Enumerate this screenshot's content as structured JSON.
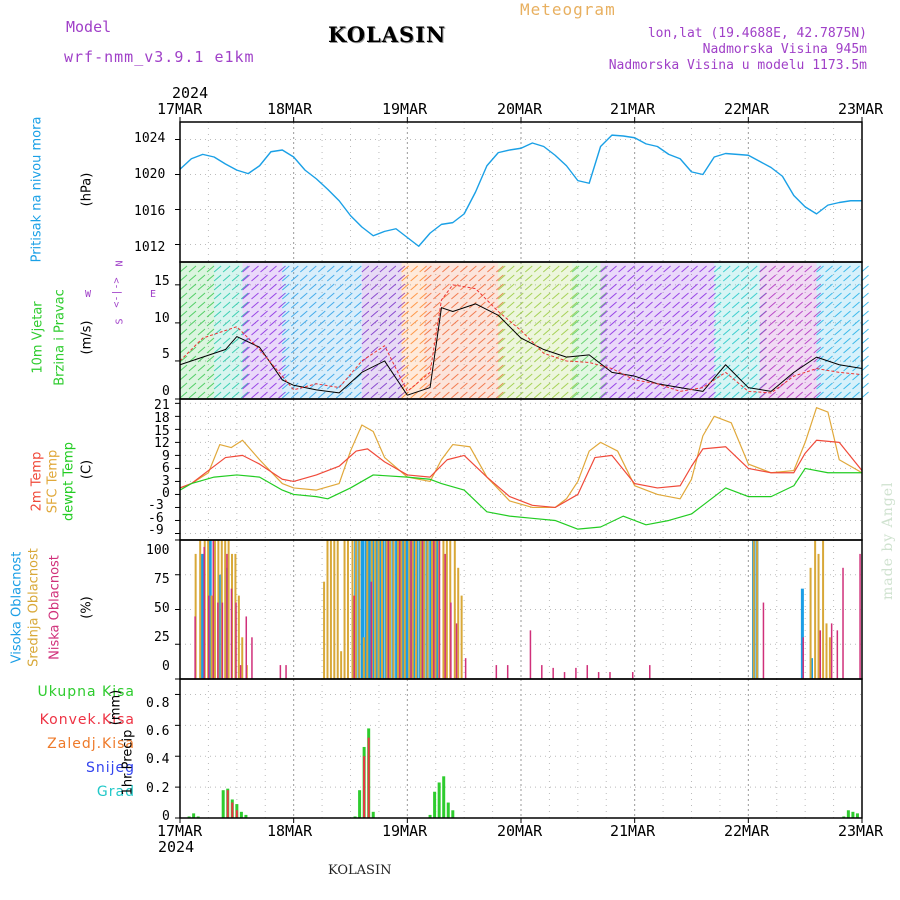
{
  "header": {
    "model_label": "Model",
    "model_name": "wrf-nmm_v3.9.1 e1km",
    "station": "KOLASIN",
    "meteogram": "Meteogram",
    "lonlat": "lon,lat (19.4688E, 42.7875N)",
    "elevation": "Nadmorska Visina 945m",
    "model_elevation": "Nadmorska Visina u modelu 1173.5m",
    "credit": "made by Angel",
    "footer_station": "KOLASIN"
  },
  "colors": {
    "pressure": "#1aa0e6",
    "temp2m": "#f04a3a",
    "sfc_temp": "#e0a83a",
    "dewpt": "#22cc22",
    "high_cloud": "#1a9ee6",
    "mid_cloud": "#d8a838",
    "low_cloud": "#d0307a",
    "total_precip": "#2ecc2e",
    "conv_precip": "#ee3344",
    "frz_precip": "#ee7a2a",
    "snow": "#3344ee",
    "hail": "#22c8c8",
    "wind_speed": "#000000",
    "wind_gust": "#ee3333",
    "title_purple": "#a040c8",
    "meteo_orange": "#e8b060"
  },
  "chart_data": {
    "type": "meteogram",
    "x_axis": {
      "year": "2024",
      "ticks": [
        "17MAR",
        "18MAR",
        "19MAR",
        "20MAR",
        "21MAR",
        "22MAR",
        "23MAR"
      ],
      "range_days": [
        0,
        6
      ]
    },
    "panels": [
      {
        "id": "pressure",
        "type": "line",
        "ylabel": "Pritisak na nivou mora",
        "unit": "(hPa)",
        "yticks": [
          "1012",
          "1016",
          "1020",
          "1024"
        ],
        "ylim": [
          1010,
          1026
        ],
        "series": [
          {
            "x": [
              0,
              0.1,
              0.2,
              0.3,
              0.4,
              0.5,
              0.6,
              0.7,
              0.8,
              0.9,
              1.0,
              1.1,
              1.2,
              1.3,
              1.4,
              1.5,
              1.6,
              1.7,
              1.8,
              1.9,
              2.0,
              2.1,
              2.2,
              2.3,
              2.4,
              2.5,
              2.6,
              2.7,
              2.8,
              2.9,
              3.0,
              3.1,
              3.2,
              3.3,
              3.4,
              3.5,
              3.6,
              3.7,
              3.8,
              3.9,
              4.0,
              4.1,
              4.2,
              4.3,
              4.4,
              4.5,
              4.6,
              4.7,
              4.8,
              4.9,
              5.0,
              5.1,
              5.2,
              5.3,
              5.4,
              5.5,
              5.6,
              5.7,
              5.8,
              5.9,
              6.0
            ],
            "y": [
              1020.6,
              1021.8,
              1022.3,
              1022.0,
              1021.2,
              1020.5,
              1020.1,
              1021.0,
              1022.6,
              1022.8,
              1022.0,
              1020.5,
              1019.5,
              1018.3,
              1017.0,
              1015.3,
              1014.0,
              1013.0,
              1013.5,
              1013.8,
              1012.8,
              1011.8,
              1013.3,
              1014.3,
              1014.5,
              1015.5,
              1018.0,
              1021.0,
              1022.5,
              1022.8,
              1023.0,
              1023.6,
              1023.2,
              1022.2,
              1021.0,
              1019.3,
              1019.0,
              1023.2,
              1024.5,
              1024.4,
              1024.2,
              1023.5,
              1023.2,
              1022.3,
              1021.8,
              1020.3,
              1020.0,
              1022.0,
              1022.4,
              1022.3,
              1022.2,
              1021.5,
              1020.8,
              1019.8,
              1017.6,
              1016.3,
              1015.5,
              1016.5,
              1016.8,
              1017.0,
              1017.0
            ]
          }
        ]
      },
      {
        "id": "wind",
        "type": "line",
        "ylabel": "10m Vjetar",
        "ylabel2": "Brzina i Pravac",
        "unit": "(m/s)",
        "compass": {
          "w": "W",
          "e": "E",
          "n": "N",
          "s": "S",
          "arrow": "<-|->"
        },
        "yticks": [
          "0",
          "5",
          "10",
          "15"
        ],
        "ylim": [
          0,
          18
        ],
        "speed": {
          "x": [
            0,
            0.2,
            0.4,
            0.5,
            0.7,
            0.9,
            1.0,
            1.2,
            1.4,
            1.6,
            1.8,
            2.0,
            2.2,
            2.3,
            2.4,
            2.6,
            2.8,
            3.0,
            3.2,
            3.4,
            3.6,
            3.8,
            4.0,
            4.2,
            4.4,
            4.6,
            4.8,
            5.0,
            5.2,
            5.4,
            5.6,
            5.8,
            6.0
          ],
          "y": [
            4.5,
            5.5,
            6.5,
            8.2,
            6.8,
            2.5,
            1.8,
            1.2,
            0.8,
            3.5,
            5.0,
            0.5,
            1.5,
            12.0,
            11.5,
            12.5,
            11.0,
            8.0,
            6.5,
            5.5,
            5.8,
            3.5,
            3.0,
            2.0,
            1.5,
            1.0,
            4.5,
            1.5,
            1.0,
            3.5,
            5.5,
            4.5,
            4.0
          ]
        },
        "gust": {
          "x": [
            0,
            0.2,
            0.4,
            0.5,
            0.7,
            0.9,
            1.0,
            1.2,
            1.4,
            1.6,
            1.8,
            2.0,
            2.2,
            2.3,
            2.4,
            2.6,
            2.8,
            3.0,
            3.2,
            3.4,
            3.6,
            3.8,
            4.0,
            4.2,
            4.4,
            4.6,
            4.8,
            5.0,
            5.2,
            5.4,
            5.6,
            5.8,
            6.0
          ],
          "y": [
            5.0,
            8.0,
            9.0,
            9.5,
            6.5,
            3.0,
            1.2,
            2.0,
            1.5,
            5.0,
            7.0,
            1.0,
            3.5,
            13.0,
            15.0,
            14.5,
            11.5,
            9.0,
            6.0,
            5.0,
            4.8,
            4.0,
            2.5,
            2.0,
            1.0,
            1.5,
            3.5,
            1.0,
            0.8,
            3.0,
            4.0,
            3.5,
            3.2
          ]
        }
      },
      {
        "id": "temperature",
        "type": "line",
        "ylabel": "2m Temp",
        "ylabel2": "SFC Temp",
        "ylabel3": "dewpt Temp",
        "unit": "(C)",
        "yticks": [
          "-9",
          "-6",
          "-3",
          "0",
          "3",
          "6",
          "9",
          "12",
          "15",
          "18",
          "21"
        ],
        "ylim": [
          -10.5,
          22
        ],
        "series": [
          {
            "name": "2m Temp",
            "x": [
              0,
              0.1,
              0.25,
              0.4,
              0.55,
              0.7,
              0.9,
              1.0,
              1.2,
              1.4,
              1.55,
              1.65,
              1.8,
              2.0,
              2.2,
              2.35,
              2.5,
              2.7,
              2.9,
              3.1,
              3.3,
              3.5,
              3.65,
              3.8,
              4.0,
              4.2,
              4.4,
              4.5,
              4.6,
              4.8,
              5.0,
              5.2,
              5.4,
              5.5,
              5.6,
              5.8,
              6.0
            ],
            "y": [
              1.5,
              2.5,
              5.5,
              8.5,
              9.0,
              7.0,
              3.5,
              3.0,
              4.5,
              6.5,
              10.0,
              10.5,
              7.5,
              4.5,
              4.0,
              8.0,
              9.0,
              4.0,
              -0.5,
              -2.5,
              -3.0,
              0.0,
              8.5,
              9.0,
              2.5,
              1.5,
              2.0,
              6.5,
              10.5,
              11.0,
              6.0,
              5.0,
              5.0,
              9.5,
              12.5,
              12.0,
              5.5
            ]
          },
          {
            "name": "SFC Temp",
            "x": [
              0,
              0.1,
              0.25,
              0.35,
              0.45,
              0.55,
              0.7,
              0.9,
              1.0,
              1.2,
              1.4,
              1.5,
              1.6,
              1.7,
              1.8,
              2.0,
              2.2,
              2.3,
              2.4,
              2.55,
              2.7,
              2.9,
              3.1,
              3.3,
              3.4,
              3.5,
              3.6,
              3.7,
              3.85,
              4.0,
              4.2,
              4.4,
              4.5,
              4.6,
              4.7,
              4.85,
              5.0,
              5.2,
              5.4,
              5.5,
              5.6,
              5.7,
              5.8,
              6.0
            ],
            "y": [
              1.5,
              2.5,
              5.0,
              11.5,
              10.8,
              12.5,
              8.0,
              2.5,
              1.5,
              1.0,
              2.5,
              10.0,
              16.0,
              14.5,
              8.5,
              4.0,
              3.0,
              8.0,
              11.5,
              11.0,
              4.0,
              -1.5,
              -3.0,
              -3.0,
              -1.0,
              3.0,
              10.0,
              12.0,
              10.0,
              2.0,
              0.0,
              -1.0,
              3.5,
              13.5,
              18.0,
              16.5,
              7.0,
              5.0,
              5.5,
              12.0,
              20.0,
              19.0,
              8.0,
              5.0
            ]
          },
          {
            "name": "dewpt Temp",
            "x": [
              0,
              0.1,
              0.3,
              0.5,
              0.7,
              0.9,
              1.0,
              1.2,
              1.3,
              1.5,
              1.7,
              2.0,
              2.2,
              2.3,
              2.5,
              2.7,
              2.9,
              3.1,
              3.3,
              3.5,
              3.7,
              3.9,
              4.1,
              4.3,
              4.5,
              4.6,
              4.8,
              5.0,
              5.2,
              5.4,
              5.5,
              5.7,
              6.0
            ],
            "y": [
              1.0,
              2.5,
              4.0,
              4.5,
              4.0,
              1.0,
              0.0,
              -0.5,
              -1.0,
              1.5,
              4.5,
              4.0,
              3.5,
              2.5,
              1.0,
              -4.0,
              -5.0,
              -5.5,
              -6.0,
              -8.0,
              -7.5,
              -5.0,
              -7.0,
              -6.0,
              -4.5,
              -2.5,
              1.5,
              -0.5,
              -0.5,
              2.0,
              6.0,
              5.0,
              5.0
            ]
          }
        ]
      },
      {
        "id": "cloud",
        "type": "bar",
        "ylabel": "Visoka Oblacnost",
        "ylabel2": "Srednja Oblacnost",
        "ylabel3": "Niska Oblacnost",
        "unit": "(%)",
        "yticks": [
          "0",
          "25",
          "50",
          "75",
          "100"
        ],
        "ylim": [
          0,
          100
        ],
        "high": {
          "x": [
            0.2,
            0.27,
            0.35,
            0.42,
            1.55,
            1.58,
            1.61,
            1.64,
            1.67,
            1.7,
            1.73,
            1.76,
            1.79,
            1.82,
            1.85,
            1.88,
            1.91,
            1.94,
            1.97,
            2.0,
            2.03,
            2.06,
            2.09,
            2.12,
            2.15,
            2.18,
            2.21,
            2.24,
            2.27,
            5.05,
            5.08,
            5.48,
            5.56
          ],
          "y": [
            90,
            100,
            75,
            80,
            100,
            100,
            100,
            100,
            100,
            100,
            100,
            100,
            100,
            100,
            100,
            100,
            100,
            100,
            100,
            100,
            100,
            100,
            100,
            100,
            100,
            100,
            100,
            100,
            100,
            100,
            100,
            65,
            15
          ]
        },
        "mid": {
          "x": [
            0.12,
            0.16,
            0.2,
            0.23,
            0.26,
            0.29,
            0.32,
            0.35,
            0.38,
            0.41,
            0.44,
            0.47,
            0.5,
            0.53,
            0.57,
            1.25,
            1.28,
            1.31,
            1.34,
            1.37,
            1.4,
            1.43,
            1.46,
            1.5,
            1.53,
            1.56,
            1.6,
            1.63,
            1.67,
            1.7,
            1.73,
            1.76,
            1.8,
            1.83,
            1.86,
            1.9,
            1.93,
            1.96,
            2.0,
            2.03,
            2.06,
            2.1,
            2.13,
            2.16,
            2.2,
            2.23,
            2.26,
            2.3,
            2.33,
            2.36,
            2.4,
            2.43,
            2.46,
            5.03,
            5.06,
            5.53,
            5.57,
            5.6,
            5.64,
            5.67,
            5.7
          ],
          "y": [
            90,
            100,
            100,
            100,
            60,
            100,
            100,
            100,
            100,
            100,
            90,
            90,
            60,
            30,
            10,
            70,
            100,
            100,
            100,
            100,
            20,
            100,
            100,
            100,
            100,
            100,
            30,
            100,
            100,
            100,
            100,
            100,
            100,
            100,
            100,
            100,
            100,
            100,
            100,
            100,
            100,
            100,
            100,
            100,
            100,
            100,
            100,
            100,
            100,
            100,
            100,
            80,
            60,
            100,
            100,
            80,
            100,
            90,
            100,
            40,
            30
          ]
        },
        "low": {
          "x": [
            0.1,
            0.18,
            0.22,
            0.26,
            0.3,
            0.34,
            0.38,
            0.42,
            0.46,
            0.5,
            0.55,
            0.6,
            0.85,
            0.9,
            1.5,
            1.65,
            1.8,
            1.9,
            2.0,
            2.1,
            2.2,
            2.25,
            2.3,
            2.35,
            2.4,
            2.48,
            2.75,
            2.85,
            3.05,
            3.15,
            3.25,
            3.35,
            3.45,
            3.55,
            3.65,
            3.75,
            3.95,
            4.1,
            5.1,
            5.45,
            5.6,
            5.7,
            5.75,
            5.8,
            5.95
          ],
          "y": [
            45,
            95,
            60,
            100,
            55,
            55,
            90,
            65,
            55,
            10,
            45,
            30,
            10,
            10,
            60,
            70,
            100,
            100,
            100,
            100,
            100,
            100,
            90,
            55,
            40,
            15,
            10,
            10,
            35,
            10,
            8,
            5,
            8,
            10,
            5,
            5,
            5,
            10,
            55,
            30,
            35,
            40,
            35,
            80,
            90
          ]
        }
      },
      {
        "id": "precip",
        "type": "bar",
        "labels": [
          "Ukupna Kisa",
          "Konvek.Kisa",
          "Zaledj.Kisa",
          "Snijeg",
          "Grad"
        ],
        "ylabel": "1hr Precip",
        "unit": "(mm)",
        "yticks": [
          "0",
          "0.2",
          "0.4",
          "0.6",
          "0.8"
        ],
        "ylim": [
          0,
          0.9
        ],
        "total": {
          "x": [
            0.08,
            0.12,
            0.16,
            0.38,
            0.42,
            0.46,
            0.5,
            0.54,
            0.58,
            1.54,
            1.58,
            1.62,
            1.66,
            1.7,
            2.2,
            2.24,
            2.28,
            2.32,
            2.36,
            2.4,
            5.84,
            5.88,
            5.92,
            5.96
          ],
          "y": [
            0.01,
            0.03,
            0.01,
            0.18,
            0.19,
            0.12,
            0.09,
            0.04,
            0.02,
            0.01,
            0.18,
            0.46,
            0.58,
            0.04,
            0.02,
            0.17,
            0.23,
            0.27,
            0.1,
            0.05,
            0.01,
            0.05,
            0.04,
            0.03
          ]
        },
        "conv": {
          "x": [
            0.42,
            0.46,
            0.5,
            1.62,
            1.66
          ],
          "y": [
            0.18,
            0.1,
            0.05,
            0.4,
            0.52
          ]
        }
      }
    ]
  }
}
